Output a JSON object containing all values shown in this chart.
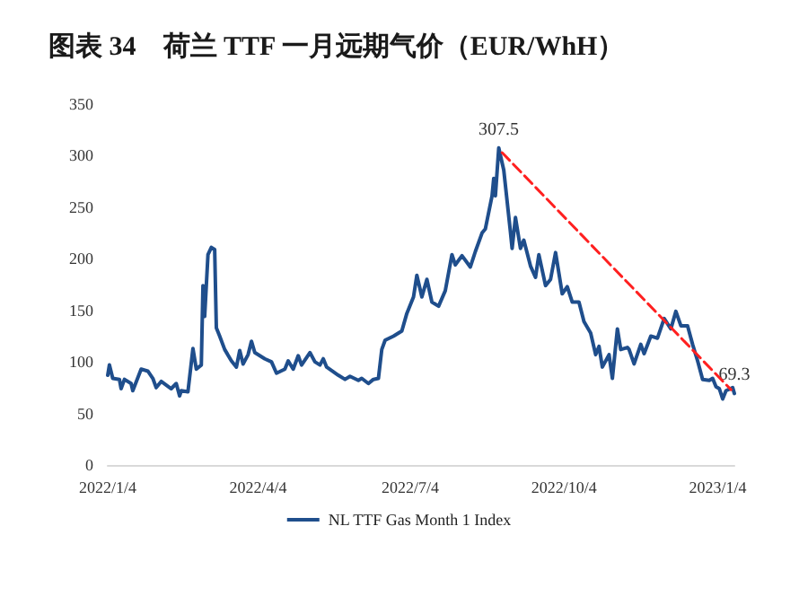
{
  "chart_data": {
    "type": "line",
    "title": "图表 34　荷兰 TTF 一月远期气价（EUR/WhH）",
    "x": [
      "2022-01-04",
      "2022-01-05",
      "2022-01-07",
      "2022-01-11",
      "2022-01-12",
      "2022-01-14",
      "2022-01-18",
      "2022-01-19",
      "2022-01-24",
      "2022-01-28",
      "2022-01-31",
      "2022-02-02",
      "2022-02-05",
      "2022-02-11",
      "2022-02-14",
      "2022-02-16",
      "2022-02-17",
      "2022-02-21",
      "2022-02-24",
      "2022-02-26",
      "2022-03-01",
      "2022-03-02",
      "2022-03-03",
      "2022-03-05",
      "2022-03-07",
      "2022-03-09",
      "2022-03-10",
      "2022-03-12",
      "2022-03-15",
      "2022-03-19",
      "2022-03-22",
      "2022-03-24",
      "2022-03-26",
      "2022-03-29",
      "2022-03-31",
      "2022-04-02",
      "2022-04-08",
      "2022-04-12",
      "2022-04-15",
      "2022-04-20",
      "2022-04-22",
      "2022-04-25",
      "2022-04-28",
      "2022-04-30",
      "2022-05-05",
      "2022-05-08",
      "2022-05-11",
      "2022-05-13",
      "2022-05-15",
      "2022-05-22",
      "2022-05-26",
      "2022-05-29",
      "2022-06-03",
      "2022-06-05",
      "2022-06-09",
      "2022-06-12",
      "2022-06-15",
      "2022-06-17",
      "2022-06-19",
      "2022-06-24",
      "2022-06-29",
      "2022-07-02",
      "2022-07-06",
      "2022-07-08",
      "2022-07-11",
      "2022-07-14",
      "2022-07-17",
      "2022-07-21",
      "2022-07-25",
      "2022-07-29",
      "2022-07-31",
      "2022-08-04",
      "2022-08-09",
      "2022-08-12",
      "2022-08-16",
      "2022-08-18",
      "2022-08-22",
      "2022-08-23",
      "2022-08-24",
      "2022-08-26",
      "2022-08-29",
      "2022-09-02",
      "2022-09-03",
      "2022-09-05",
      "2022-09-08",
      "2022-09-10",
      "2022-09-14",
      "2022-09-17",
      "2022-09-19",
      "2022-09-23",
      "2022-09-26",
      "2022-09-29",
      "2022-10-03",
      "2022-10-06",
      "2022-10-09",
      "2022-10-13",
      "2022-10-16",
      "2022-10-20",
      "2022-10-23",
      "2022-10-25",
      "2022-10-27",
      "2022-10-31",
      "2022-11-02",
      "2022-11-05",
      "2022-11-07",
      "2022-11-11",
      "2022-11-12",
      "2022-11-15",
      "2022-11-19",
      "2022-11-21",
      "2022-11-25",
      "2022-11-29",
      "2022-12-03",
      "2022-12-07",
      "2022-12-10",
      "2022-12-13",
      "2022-12-17",
      "2022-12-20",
      "2022-12-23",
      "2022-12-26",
      "2022-12-30",
      "2023-01-01",
      "2023-01-03",
      "2023-01-05",
      "2023-01-07",
      "2023-01-09",
      "2023-01-13",
      "2023-01-14"
    ],
    "series": [
      {
        "name": "NL TTF Gas Month 1 Index",
        "color": "#1f4e8c",
        "line_style": "solid",
        "values": [
          87,
          97,
          84,
          83,
          74,
          83,
          79,
          72,
          93,
          91,
          84,
          75,
          81,
          74,
          79,
          67,
          72,
          71,
          113,
          93,
          97,
          174,
          144,
          204,
          211,
          209,
          133,
          125,
          112,
          101,
          95,
          111,
          98,
          107,
          120,
          109,
          103,
          100,
          89,
          93,
          101,
          93,
          106,
          97,
          109,
          100,
          97,
          103,
          95,
          87,
          83,
          86,
          82,
          84,
          79,
          83,
          84,
          112,
          121,
          125,
          130,
          147,
          163,
          184,
          163,
          180,
          158,
          154,
          169,
          204,
          194,
          203,
          192,
          207,
          225,
          229,
          261,
          278,
          261,
          307.5,
          286,
          226,
          210,
          240,
          210,
          218,
          193,
          182,
          204,
          174,
          180,
          206,
          166,
          173,
          158,
          158,
          139,
          128,
          107,
          115,
          95,
          107,
          84,
          132,
          112,
          114,
          112,
          98,
          117,
          108,
          125,
          123,
          142,
          132,
          149,
          135,
          135,
          117,
          101,
          83,
          82,
          84,
          76,
          74,
          64,
          72,
          75,
          69.3
        ],
        "value_labels": [
          null,
          null,
          null,
          null,
          null,
          null,
          null,
          null,
          null,
          null,
          null,
          null,
          null,
          null,
          null,
          null,
          null,
          null,
          null,
          null,
          null,
          null,
          null,
          null,
          null,
          null,
          null,
          null,
          null,
          null,
          null,
          null,
          null,
          null,
          null,
          null,
          null,
          null,
          null,
          null,
          null,
          null,
          null,
          null,
          null,
          null,
          null,
          null,
          null,
          null,
          null,
          null,
          null,
          null,
          null,
          null,
          null,
          null,
          null,
          null,
          null,
          null,
          null,
          null,
          null,
          null,
          null,
          null,
          null,
          null,
          null,
          null,
          null,
          null,
          null,
          null,
          null,
          null,
          null,
          "307.5",
          null,
          null,
          null,
          null,
          null,
          null,
          null,
          null,
          null,
          null,
          null,
          null,
          null,
          null,
          null,
          null,
          null,
          null,
          null,
          null,
          null,
          null,
          null,
          null,
          null,
          null,
          null,
          null,
          null,
          null,
          null,
          null,
          null,
          null,
          null,
          null,
          null,
          null,
          null,
          null,
          null,
          null,
          null,
          null,
          null,
          null,
          null,
          "69.3"
        ]
      },
      {
        "color": "#ff2020",
        "line_style": "dashed",
        "x": [
          "2022-08-28",
          "2023-01-12"
        ],
        "values": [
          303,
          73
        ]
      }
    ],
    "xlim": [
      "2022-01-04",
      "2023-01-14"
    ],
    "xticks": [
      {
        "value": "2022-01-04",
        "label": "2022/1/4"
      },
      {
        "value": "2022-04-04",
        "label": "2022/4/4"
      },
      {
        "value": "2022-07-04",
        "label": "2022/7/4"
      },
      {
        "value": "2022-10-04",
        "label": "2022/10/4"
      },
      {
        "value": "2023-01-04",
        "label": "2023/1/4"
      }
    ],
    "ylim": [
      0,
      350
    ],
    "yticks": [
      0,
      50,
      100,
      150,
      200,
      250,
      300,
      350
    ],
    "grid": false,
    "legend": "bottom",
    "marker": "none"
  }
}
